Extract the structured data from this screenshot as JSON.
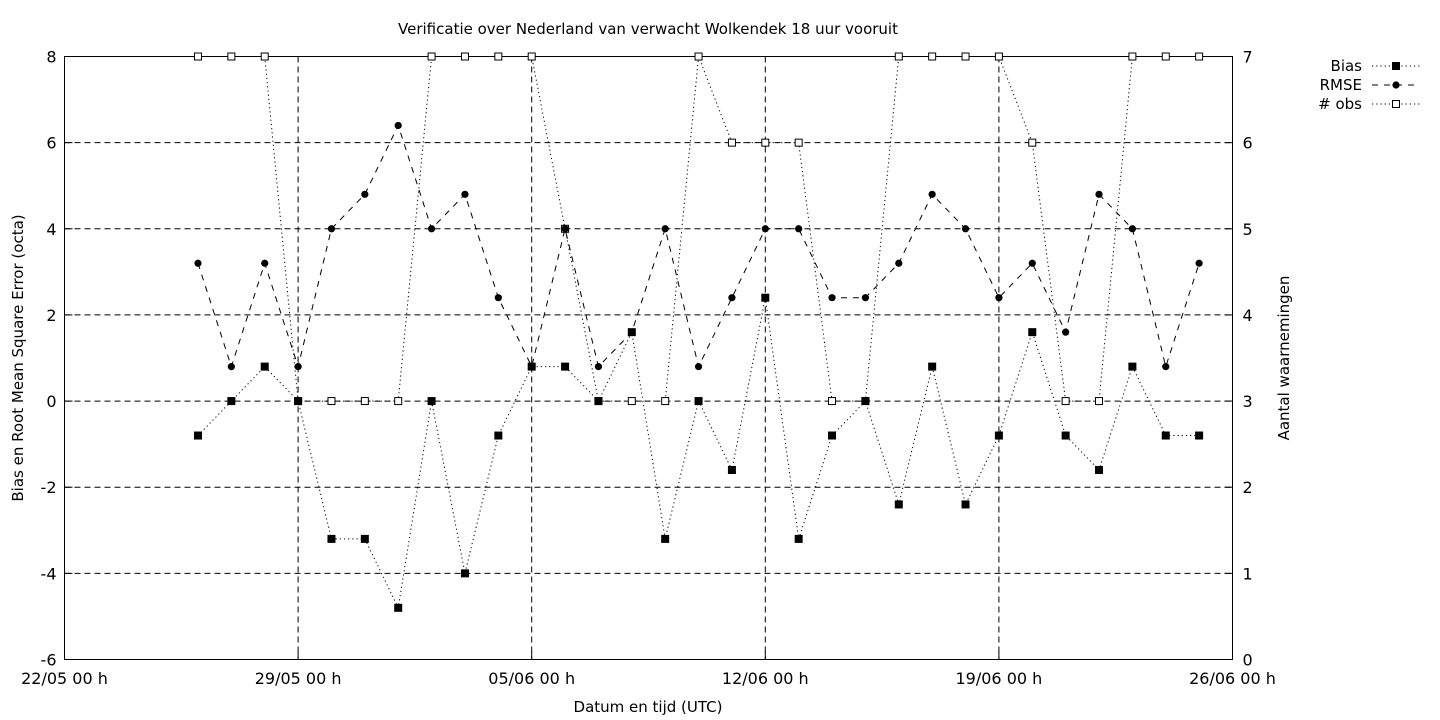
{
  "chart_data": {
    "type": "line",
    "title": "Verificatie over Nederland van verwacht Wolkendek 18 uur vooruit",
    "xlabel": "Datum en tijd (UTC)",
    "ylabel": "Bias en Root Mean Square Error (octa)",
    "y2label": "Aantal waarnemingen",
    "xlim": [
      "2021-05-22",
      "2021-06-26"
    ],
    "ylim": [
      -6,
      8
    ],
    "y2lim": [
      0,
      7
    ],
    "x_ticks": [
      "22/05 00 h",
      "29/05 00 h",
      "05/06 00 h",
      "12/06 00 h",
      "19/06 00 h",
      "26/06 00 h"
    ],
    "y_ticks": [
      "-6",
      "-4",
      "-2",
      "0",
      "2",
      "4",
      "6",
      "8"
    ],
    "y2_ticks": [
      "0",
      "1",
      "2",
      "3",
      "4",
      "5",
      "6",
      "7"
    ],
    "grid": true,
    "legend_position": "outside-top-right",
    "x": [
      "2021-05-26",
      "2021-05-27",
      "2021-05-28",
      "2021-05-29",
      "2021-05-30",
      "2021-05-31",
      "2021-06-01",
      "2021-06-02",
      "2021-06-03",
      "2021-06-04",
      "2021-06-05",
      "2021-06-06",
      "2021-06-07",
      "2021-06-08",
      "2021-06-09",
      "2021-06-10",
      "2021-06-11",
      "2021-06-12",
      "2021-06-13",
      "2021-06-14",
      "2021-06-15",
      "2021-06-16",
      "2021-06-17",
      "2021-06-18",
      "2021-06-19",
      "2021-06-20",
      "2021-06-21",
      "2021-06-22",
      "2021-06-23",
      "2021-06-24",
      "2021-06-25"
    ],
    "series": [
      {
        "name": "Bias",
        "axis": "y",
        "marker": "filled-square",
        "line": "dotted",
        "values": [
          -0.8,
          0,
          0.8,
          0,
          -3.2,
          -3.2,
          -4.8,
          0,
          -4,
          -0.8,
          0.8,
          0.8,
          0,
          1.6,
          -3.2,
          0,
          -1.6,
          2.4,
          -3.2,
          -0.8,
          0,
          -2.4,
          0.8,
          -2.4,
          -0.8,
          1.6,
          -0.8,
          -1.6,
          0.8,
          -0.8,
          -0.8
        ]
      },
      {
        "name": "RMSE",
        "axis": "y",
        "marker": "filled-circle",
        "line": "dashed",
        "values": [
          3.2,
          0.8,
          3.2,
          0.8,
          4,
          4.8,
          6.4,
          4,
          4.8,
          2.4,
          0.8,
          4,
          0.8,
          1.6,
          4,
          0.8,
          2.4,
          4,
          4,
          2.4,
          2.4,
          3.2,
          4.8,
          4,
          2.4,
          3.2,
          1.6,
          4.8,
          4,
          0.8,
          3.2
        ]
      },
      {
        "name": "# obs",
        "axis": "y2",
        "marker": "open-square",
        "line": "dotted",
        "values": [
          7,
          7,
          7,
          3,
          3,
          3,
          3,
          7,
          7,
          7,
          7,
          5,
          3,
          3,
          3,
          7,
          6,
          6,
          6,
          3,
          3,
          7,
          7,
          7,
          7,
          6,
          3,
          3,
          7,
          7,
          7
        ]
      }
    ]
  }
}
